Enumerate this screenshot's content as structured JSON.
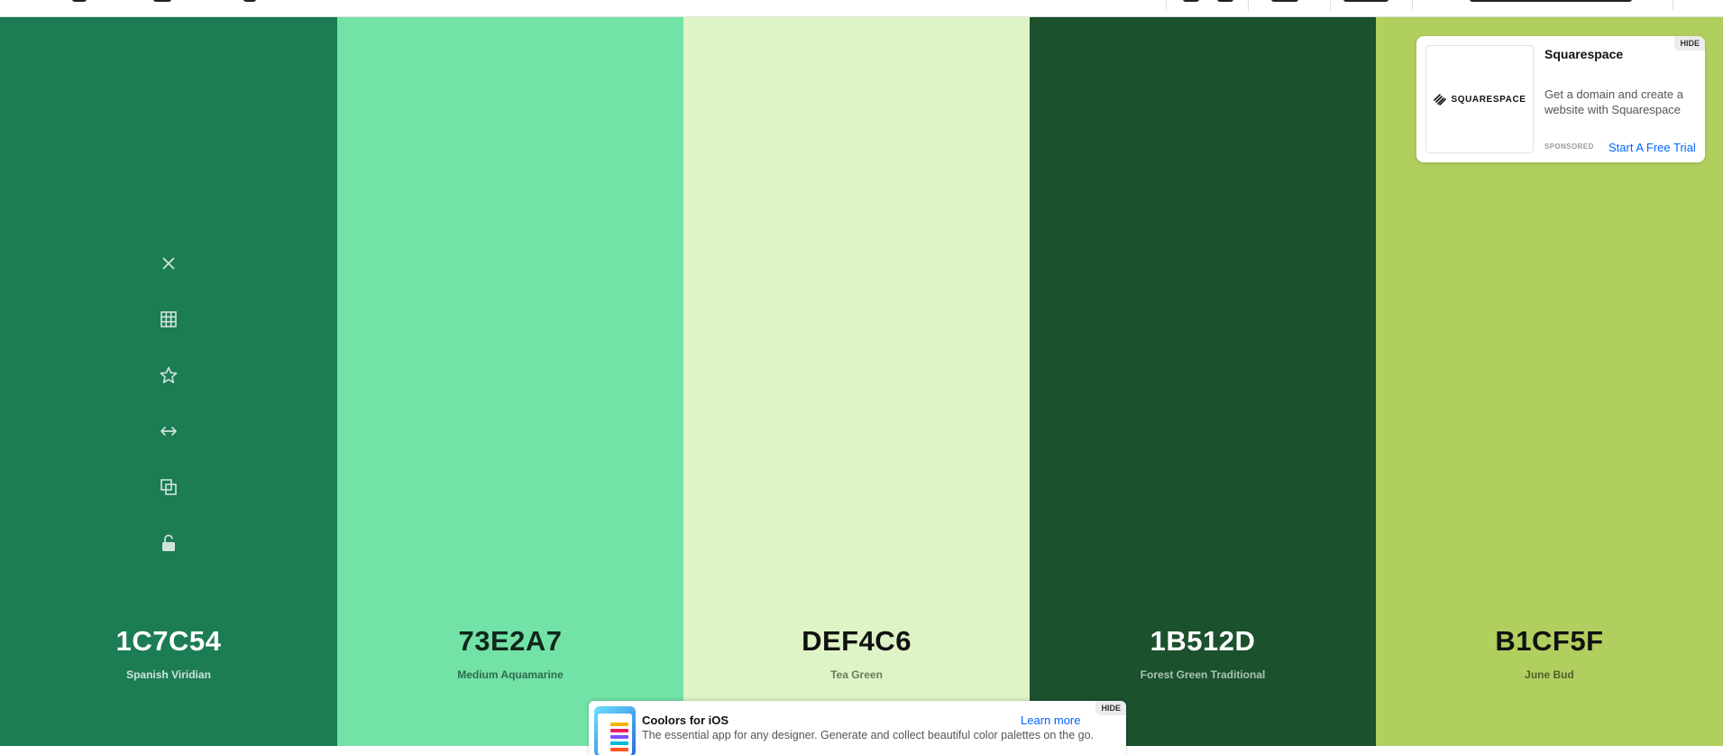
{
  "palette": {
    "colors": [
      {
        "hex": "1C7C54",
        "name": "Spanish Viridian",
        "bg": "#1C7C54",
        "text_color": "#ffffff",
        "sub_color": "#cfe3d9"
      },
      {
        "hex": "73E2A7",
        "name": "Medium Aquamarine",
        "bg": "#73E2A7",
        "text_color": "#10271c",
        "sub_color": "#2f6b4e"
      },
      {
        "hex": "DEF4C6",
        "name": "Tea Green",
        "bg": "#DEF4C6",
        "text_color": "#111111",
        "sub_color": "#6b7a5c"
      },
      {
        "hex": "1B512D",
        "name": "Forest Green Traditional",
        "bg": "#1B512D",
        "text_color": "#ffffff",
        "sub_color": "#a9c4b1"
      },
      {
        "hex": "B1CF5F",
        "name": "June Bud",
        "bg": "#B1CF5F",
        "text_color": "#111111",
        "sub_color": "#4f5e2a"
      }
    ],
    "tool_icons": [
      "close-icon",
      "grid-icon",
      "star-icon",
      "drag-horizontal-icon",
      "copy-icon",
      "lock-icon"
    ]
  },
  "sponsor_ad": {
    "hide_label": "HIDE",
    "logo_text": "SQUARESPACE",
    "title": "Squarespace",
    "description": "Get a domain and create a website with Squarespace",
    "sponsored_label": "SPONSORED",
    "cta": "Start A Free Trial"
  },
  "ios_banner": {
    "hide_label": "HIDE",
    "title": "Coolors for iOS",
    "cta": "Learn more",
    "description": "The essential app for any designer. Generate and collect beautiful color palettes on the go."
  }
}
